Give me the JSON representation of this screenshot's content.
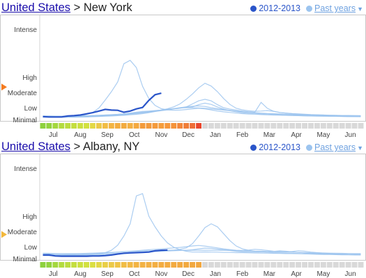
{
  "panels": [
    {
      "header": {
        "link": "United States",
        "separator": " > ",
        "place": "New York"
      },
      "legend": {
        "current": "2012-2013",
        "past": "Past years",
        "current_color": "#2a55c9",
        "past_color": "#9cc4ef"
      },
      "indicator_level": "Moderate-High",
      "indicator_color": "#f47b20"
    },
    {
      "header": {
        "link": "United States",
        "separator": " > ",
        "place": "Albany, NY"
      },
      "legend": {
        "current": "2012-2013",
        "past": "Past years",
        "current_color": "#2a55c9",
        "past_color": "#9cc4ef"
      },
      "indicator_level": "Moderate",
      "indicator_color": "#f2b83c"
    }
  ],
  "chart_data": [
    {
      "type": "line",
      "title": "New York",
      "x_labels": [
        "Jul",
        "Aug",
        "Sep",
        "Oct",
        "Nov",
        "Dec",
        "Jan",
        "Feb",
        "Mar",
        "Apr",
        "May",
        "Jun"
      ],
      "y_labels": [
        "Intense",
        "High",
        "Moderate",
        "Low",
        "Minimal"
      ],
      "series": [
        {
          "name": "2012-2013",
          "current": true,
          "values": [
            0.25,
            0.22,
            0.22,
            0.22,
            0.3,
            0.33,
            0.38,
            0.48,
            0.58,
            0.72,
            0.86,
            0.8,
            0.78,
            0.62,
            0.72,
            0.9,
            1.02,
            1.48,
            1.85,
            1.95
          ]
        },
        {
          "current": false,
          "values": [
            0.3,
            0.28,
            0.26,
            0.26,
            0.28,
            0.3,
            0.34,
            0.42,
            0.6,
            0.98,
            1.5,
            2.05,
            2.68,
            3.28,
            3.35,
            3.2,
            2.4,
            1.6,
            1.15,
            0.92,
            0.82,
            0.78,
            0.8,
            0.85,
            0.9,
            0.95,
            0.9,
            0.82,
            0.72,
            0.65,
            0.6,
            0.55,
            0.5,
            0.47,
            0.45,
            0.42,
            0.4,
            0.38,
            0.37,
            0.36,
            0.34,
            0.33,
            0.32,
            0.3,
            0.3,
            0.29,
            0.28,
            0.28,
            0.27,
            0.26,
            0.25,
            0.24
          ]
        },
        {
          "current": false,
          "values": [
            0.2,
            0.2,
            0.19,
            0.19,
            0.2,
            0.2,
            0.21,
            0.22,
            0.24,
            0.26,
            0.28,
            0.3,
            0.33,
            0.36,
            0.4,
            0.44,
            0.5,
            0.58,
            0.68,
            0.8,
            0.92,
            1.06,
            1.25,
            1.55,
            1.9,
            2.3,
            2.6,
            2.42,
            2.05,
            1.6,
            1.22,
            0.96,
            0.82,
            0.74,
            0.7,
            0.72,
            0.76,
            0.7,
            0.6,
            0.55,
            0.5,
            0.48,
            0.45,
            0.42,
            0.4,
            0.38,
            0.35,
            0.33,
            0.31,
            0.3,
            0.28,
            0.27
          ]
        },
        {
          "current": false,
          "values": [
            0.25,
            0.24,
            0.24,
            0.23,
            0.23,
            0.24,
            0.25,
            0.26,
            0.28,
            0.3,
            0.33,
            0.37,
            0.42,
            0.48,
            0.55,
            0.62,
            0.68,
            0.72,
            0.76,
            0.8,
            0.85,
            0.9,
            0.95,
            1.05,
            1.25,
            1.45,
            1.55,
            1.45,
            1.2,
            1.0,
            0.88,
            0.8,
            0.72,
            0.66,
            0.62,
            1.35,
            0.95,
            0.7,
            0.6,
            0.55,
            0.5,
            0.46,
            0.42,
            0.4,
            0.38,
            0.36,
            0.34,
            0.32,
            0.31,
            0.3,
            0.29,
            0.28
          ]
        },
        {
          "current": false,
          "values": [
            0.3,
            0.3,
            0.29,
            0.29,
            0.3,
            0.3,
            0.31,
            0.32,
            0.34,
            0.36,
            0.38,
            0.4,
            0.43,
            0.46,
            0.5,
            0.55,
            0.6,
            0.66,
            0.72,
            0.78,
            0.85,
            0.92,
            1.0,
            1.06,
            1.1,
            1.12,
            1.08,
            1.0,
            0.92,
            0.85,
            0.78,
            0.72,
            0.66,
            0.6,
            0.56,
            0.52,
            0.49,
            0.46,
            0.44,
            0.42,
            0.4,
            0.38,
            0.37,
            0.36,
            0.35,
            0.34,
            0.33,
            0.32,
            0.31,
            0.3,
            0.3,
            0.29
          ]
        },
        {
          "current": false,
          "values": [
            0.22,
            0.22,
            0.21,
            0.21,
            0.22,
            0.22,
            0.23,
            0.24,
            0.26,
            0.28,
            0.3,
            0.33,
            0.36,
            0.4,
            0.45,
            0.5,
            0.56,
            0.62,
            0.68,
            0.75,
            0.82,
            0.9,
            0.98,
            1.02,
            1.05,
            1.2,
            1.3,
            1.22,
            1.05,
            0.88,
            0.75,
            0.65,
            0.58,
            0.52,
            0.48,
            0.45,
            0.42,
            0.4,
            0.38,
            0.36,
            0.34,
            0.33,
            0.32,
            0.3,
            0.29,
            0.28,
            0.27,
            0.27,
            0.26,
            0.25,
            0.25,
            0.24
          ]
        },
        {
          "current": false,
          "values": [
            0.28,
            0.28,
            0.27,
            0.27,
            0.28,
            0.29,
            0.3,
            0.31,
            0.33,
            0.35,
            0.38,
            0.41,
            0.44,
            0.48,
            0.52,
            0.57,
            0.62,
            0.68,
            0.74,
            0.8,
            0.87,
            0.93,
            0.98,
            1.0,
            1.0,
            0.98,
            0.95,
            0.9,
            0.85,
            0.8,
            0.75,
            0.7,
            0.66,
            0.62,
            0.58,
            0.55,
            0.52,
            0.5,
            0.48,
            0.46,
            0.44,
            0.42,
            0.41,
            0.4,
            0.39,
            0.38,
            0.37,
            0.36,
            0.35,
            0.35,
            0.34,
            0.33
          ]
        }
      ],
      "activity_bar": [
        "#8ed13e",
        "#93d33e",
        "#a4d73f",
        "#b3db3f",
        "#bcdc40",
        "#c4de40",
        "#cce040",
        "#d2e140",
        "#e3d845",
        "#ecc948",
        "#f1bd45",
        "#f3b443",
        "#f3ad41",
        "#f2ab40",
        "#f3b043",
        "#f4a940",
        "#f39b3b",
        "#f39a3c",
        "#f49a3c",
        "#f59d3c",
        "#f6983c",
        "#f5933a",
        "#f3873a",
        "#f07d38",
        "#ee6d37",
        "#e9462c"
      ]
    },
    {
      "type": "line",
      "title": "Albany, NY",
      "x_labels": [
        "Jul",
        "Aug",
        "Sep",
        "Oct",
        "Nov",
        "Dec",
        "Jan",
        "Feb",
        "Mar",
        "Apr",
        "May",
        "Jun"
      ],
      "y_labels": [
        "Intense",
        "High",
        "Moderate",
        "Low",
        "Minimal"
      ],
      "series": [
        {
          "name": "2012-2013",
          "current": true,
          "values": [
            0.3,
            0.3,
            0.22,
            0.2,
            0.2,
            0.2,
            0.2,
            0.2,
            0.22,
            0.22,
            0.25,
            0.3,
            0.38,
            0.45,
            0.48,
            0.5,
            0.52,
            0.55,
            0.65,
            0.7,
            0.72
          ]
        },
        {
          "current": false,
          "values": [
            0.4,
            0.38,
            0.35,
            0.32,
            0.3,
            0.3,
            0.3,
            0.32,
            0.35,
            0.4,
            0.5,
            0.7,
            1.1,
            1.7,
            2.5,
            3.42,
            3.47,
            3.0,
            2.3,
            1.7,
            1.25,
            0.95,
            0.75,
            0.62,
            0.55,
            0.55,
            0.56,
            0.55,
            0.54,
            0.52,
            0.52,
            0.5,
            0.5,
            0.48,
            0.47,
            0.46,
            0.45,
            0.44,
            0.43,
            0.42,
            0.42,
            0.41,
            0.4,
            0.4,
            0.39,
            0.38,
            0.38,
            0.37,
            0.36,
            0.35,
            0.35,
            0.35
          ]
        },
        {
          "current": false,
          "values": [
            0.25,
            0.24,
            0.24,
            0.23,
            0.23,
            0.23,
            0.24,
            0.25,
            0.26,
            0.28,
            0.3,
            0.33,
            0.36,
            0.4,
            0.44,
            0.48,
            0.52,
            0.56,
            0.6,
            0.64,
            0.68,
            0.72,
            0.78,
            0.9,
            1.2,
            1.7,
            2.25,
            2.5,
            2.3,
            1.85,
            1.4,
            1.05,
            0.82,
            0.7,
            0.62,
            0.58,
            0.54,
            0.5,
            0.48,
            0.46,
            0.44,
            0.42,
            0.4,
            0.38,
            0.36,
            0.35,
            0.34,
            0.33,
            0.32,
            0.31,
            0.3,
            0.3
          ]
        },
        {
          "current": false,
          "values": [
            0.35,
            0.35,
            0.34,
            0.34,
            0.35,
            0.36,
            0.37,
            0.39,
            0.41,
            0.44,
            0.47,
            0.5,
            0.54,
            0.58,
            0.62,
            0.66,
            0.7,
            0.74,
            0.78,
            0.82,
            0.86,
            0.9,
            0.94,
            1.0,
            1.05,
            1.08,
            1.04,
            0.98,
            0.9,
            0.82,
            0.76,
            0.7,
            0.68,
            0.72,
            0.78,
            0.74,
            0.68,
            0.62,
            0.58,
            0.56,
            0.6,
            0.66,
            0.62,
            0.55,
            0.5,
            0.46,
            0.43,
            0.4,
            0.38,
            0.36,
            0.35,
            0.34
          ]
        },
        {
          "current": false,
          "values": [
            0.45,
            0.44,
            0.43,
            0.42,
            0.42,
            0.42,
            0.43,
            0.44,
            0.46,
            0.48,
            0.5,
            0.52,
            0.55,
            0.58,
            0.6,
            0.62,
            0.64,
            0.66,
            0.68,
            0.7,
            0.7,
            0.7,
            0.7,
            0.7,
            0.7,
            0.7,
            0.7,
            0.7,
            0.7,
            0.7,
            0.68,
            0.66,
            0.65,
            0.64,
            0.63,
            0.62,
            0.6,
            0.58,
            0.56,
            0.55,
            0.54,
            0.52,
            0.5,
            0.49,
            0.48,
            0.47,
            0.46,
            0.45,
            0.44,
            0.43,
            0.42,
            0.42
          ]
        },
        {
          "current": false,
          "values": [
            0.3,
            0.3,
            0.29,
            0.29,
            0.3,
            0.3,
            0.31,
            0.32,
            0.34,
            0.36,
            0.38,
            0.41,
            0.44,
            0.47,
            0.5,
            0.53,
            0.56,
            0.58,
            0.6,
            0.62,
            0.64,
            0.66,
            0.68,
            0.7,
            0.75,
            0.82,
            0.88,
            0.86,
            0.8,
            0.74,
            0.68,
            0.62,
            0.58,
            0.56,
            0.55,
            0.55,
            0.56,
            0.6,
            0.66,
            0.62,
            0.56,
            0.52,
            0.48,
            0.45,
            0.42,
            0.4,
            0.38,
            0.36,
            0.35,
            0.34,
            0.33,
            0.32
          ]
        }
      ],
      "activity_bar": [
        "#8ed13e",
        "#93d33e",
        "#a4d73f",
        "#b3db3f",
        "#bcdc40",
        "#c4de40",
        "#cce040",
        "#d2e140",
        "#dbdf42",
        "#e3d845",
        "#e9cf47",
        "#ecc948",
        "#efc446",
        "#f1bd45",
        "#f2b944",
        "#f3b443",
        "#f3b243",
        "#f3b043",
        "#f3ae42",
        "#f3ac41",
        "#f3ab40",
        "#f3aa40",
        "#f2a940",
        "#f2a93f",
        "#f2a83f",
        "#f2a73f"
      ]
    }
  ]
}
